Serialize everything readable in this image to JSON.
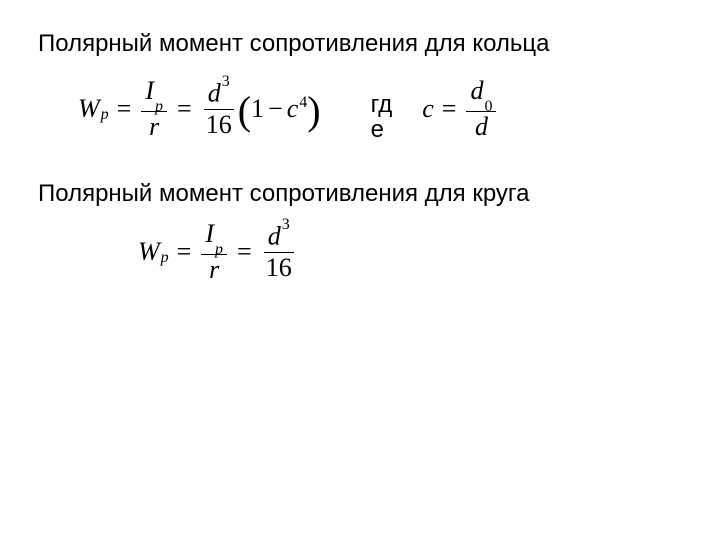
{
  "heading1": "Полярный момент сопротивления для кольца",
  "heading2": "Полярный момент сопротивления для круга",
  "where_label": "гд\nе",
  "formula1": {
    "lhs_var": "W",
    "lhs_sub": "p",
    "frac1_num_var": "I",
    "frac1_num_sub": "p",
    "frac1_den": "r",
    "frac2_num_var": "d",
    "frac2_num_sup": "3",
    "frac2_den": "16",
    "paren_open": "(",
    "one": "1",
    "minus": "−",
    "c_var": "c",
    "c_sup": "4",
    "paren_close": ")"
  },
  "cdef": {
    "c_var": "c",
    "frac_num_var": "d",
    "frac_num_sub": "0",
    "frac_den": "d"
  },
  "formula2": {
    "lhs_var": "W",
    "lhs_sub": "p",
    "frac1_num_var": "I",
    "frac1_num_sub": "p",
    "frac1_den": "r",
    "frac2_num_var": "d",
    "frac2_num_sup": "3",
    "frac2_den": "16"
  },
  "style": {
    "background_color": "#ffffff",
    "text_color": "#000000",
    "heading_fontsize": 24,
    "formula_fontsize": 26,
    "formula_font": "Times New Roman",
    "body_font": "Arial"
  }
}
